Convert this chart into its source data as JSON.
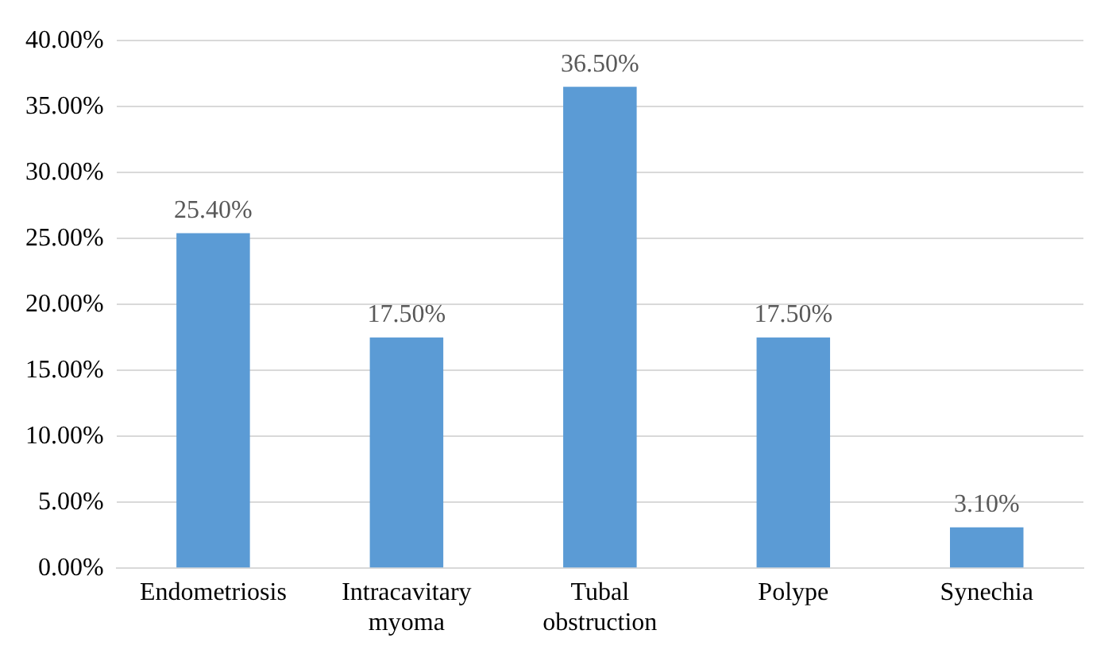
{
  "chart_data": {
    "type": "bar",
    "categories": [
      "Endometriosis",
      "Intracavitary myoma",
      "Tubal obstruction",
      "Polype",
      "Synechia"
    ],
    "values": [
      25.4,
      17.5,
      36.5,
      17.5,
      3.1
    ],
    "value_labels": [
      "25.40%",
      "17.50%",
      "36.50%",
      "17.50%",
      "3.10%"
    ],
    "color": "#5b9bd5",
    "ylim": [
      0,
      40
    ],
    "yticks": [
      {
        "value": 0,
        "label": "0.00%"
      },
      {
        "value": 5,
        "label": "5.00%"
      },
      {
        "value": 10,
        "label": "10.00%"
      },
      {
        "value": 15,
        "label": "15.00%"
      },
      {
        "value": 20,
        "label": "20.00%"
      },
      {
        "value": 25,
        "label": "25.00%"
      },
      {
        "value": 30,
        "label": "30.00%"
      },
      {
        "value": 35,
        "label": "35.00%"
      },
      {
        "value": 40,
        "label": "40.00%"
      }
    ],
    "grid": "y",
    "legend": false
  }
}
